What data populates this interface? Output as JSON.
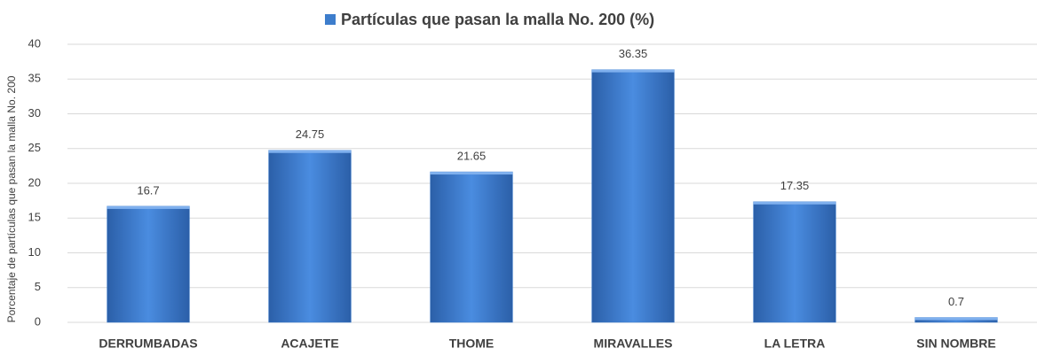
{
  "chart_data": {
    "type": "bar",
    "y_label": "Porcentaje de partículas que pasan la malla No. 200",
    "categories": [
      "DERRUMBADAS",
      "ACAJETE",
      "THOME",
      "MIRAVALLES",
      "LA LETRA",
      "SIN NOMBRE"
    ],
    "series": [
      {
        "name": "Partículas que pasan la malla No. 200 (%)",
        "color": "#3d7dcc",
        "values": [
          16.7,
          24.75,
          21.65,
          36.35,
          17.35,
          0.7
        ]
      }
    ],
    "ylim": [
      0,
      40
    ],
    "yticks": [
      0,
      5,
      10,
      15,
      20,
      25,
      30,
      35,
      40
    ],
    "grid": true,
    "legend": "top"
  }
}
